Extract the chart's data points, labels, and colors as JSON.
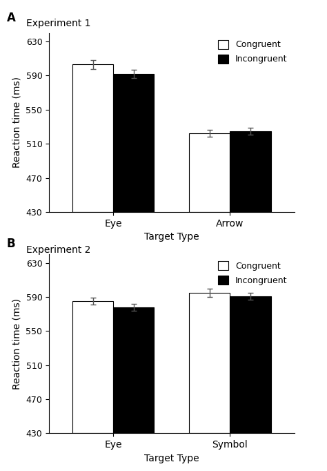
{
  "exp1": {
    "label": "Experiment 1",
    "panel": "A",
    "categories": [
      "Eye",
      "Arrow"
    ],
    "congruent": [
      603,
      522
    ],
    "incongruent": [
      592,
      525
    ],
    "congruent_err": [
      5,
      4
    ],
    "incongruent_err": [
      5,
      4
    ],
    "xlabel": "Target Type",
    "ylabel": "Reaction time (ms)",
    "ylim": [
      430,
      640
    ],
    "yticks": [
      430,
      470,
      510,
      550,
      590,
      630
    ]
  },
  "exp2": {
    "label": "Experiment 2",
    "panel": "B",
    "categories": [
      "Eye",
      "Symbol"
    ],
    "congruent": [
      585,
      595
    ],
    "incongruent": [
      578,
      591
    ],
    "congruent_err": [
      4,
      5
    ],
    "incongruent_err": [
      4,
      4
    ],
    "xlabel": "Target Type",
    "ylabel": "Reaction time (ms)",
    "ylim": [
      430,
      640
    ],
    "yticks": [
      430,
      470,
      510,
      550,
      590,
      630
    ]
  },
  "legend_labels": [
    "Congruent",
    "Incongruent"
  ],
  "bar_colors": [
    "white",
    "black"
  ],
  "bar_edgecolor": "black",
  "bar_width": 0.35,
  "figsize": [
    4.74,
    6.82
  ],
  "dpi": 100
}
